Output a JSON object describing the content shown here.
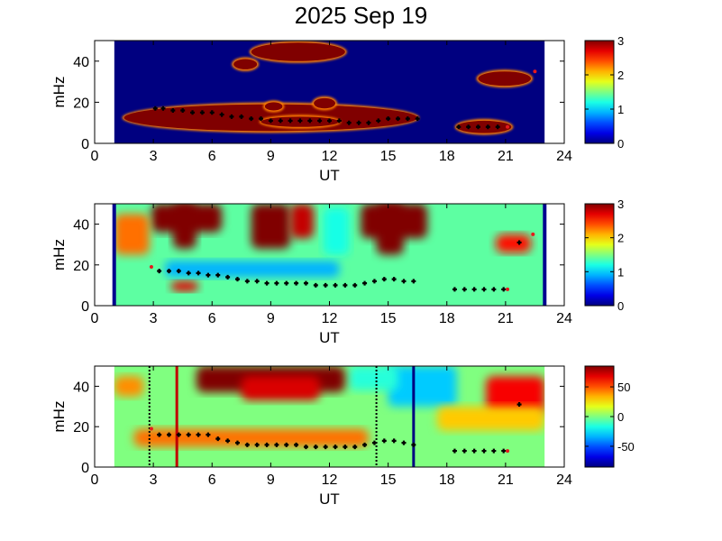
{
  "title": "2025 Sep 19",
  "chart_data": [
    {
      "type": "heatmap",
      "panel": "top",
      "xlabel": "UT",
      "ylabel": "mHz",
      "xlim": [
        0,
        24
      ],
      "ylim": [
        0,
        50
      ],
      "xticks": [
        0,
        3,
        6,
        9,
        12,
        15,
        18,
        21,
        24
      ],
      "yticks": [
        0,
        20,
        40
      ],
      "colorbar": {
        "range": [
          0,
          3
        ],
        "ticks": [
          0,
          1,
          2,
          3
        ]
      },
      "data_extent_ut": [
        1.0,
        23.0
      ],
      "background_level": 0,
      "high_regions": [
        {
          "ut": [
            1.5,
            16.5
          ],
          "mhz": [
            6,
            19
          ],
          "level": 3,
          "label": "main band"
        },
        {
          "ut": [
            8.5,
            12.5
          ],
          "mhz": [
            8,
            13
          ],
          "level": 3,
          "label": "band core"
        },
        {
          "ut": [
            8.7,
            9.6
          ],
          "mhz": [
            16,
            20
          ],
          "level": 3
        },
        {
          "ut": [
            11.2,
            12.3
          ],
          "mhz": [
            17,
            22
          ],
          "level": 3
        },
        {
          "ut": [
            7.1,
            8.3
          ],
          "mhz": [
            36,
            41
          ],
          "level": 3
        },
        {
          "ut": [
            8.0,
            12.8
          ],
          "mhz": [
            40,
            49
          ],
          "level": 3
        },
        {
          "ut": [
            18.5,
            21.3
          ],
          "mhz": [
            5,
            11
          ],
          "level": 3
        },
        {
          "ut": [
            19.6,
            22.3
          ],
          "mhz": [
            28,
            35
          ],
          "level": 3
        }
      ],
      "series": [
        {
          "kind": "peak_frequency",
          "color": "#000000",
          "points": [
            [
              3.1,
              17
            ],
            [
              3.5,
              17
            ],
            [
              4.0,
              16
            ],
            [
              4.5,
              16
            ],
            [
              5.0,
              15
            ],
            [
              5.5,
              15
            ],
            [
              6.0,
              15
            ],
            [
              6.5,
              14
            ],
            [
              7.0,
              13
            ],
            [
              7.5,
              13
            ],
            [
              8.0,
              12
            ],
            [
              8.5,
              12
            ],
            [
              9.0,
              11
            ],
            [
              9.5,
              11
            ],
            [
              10.0,
              11
            ],
            [
              10.5,
              11
            ],
            [
              11.0,
              11
            ],
            [
              11.5,
              11
            ],
            [
              12.0,
              11
            ],
            [
              12.5,
              11
            ],
            [
              13.0,
              10
            ],
            [
              13.5,
              10
            ],
            [
              14.0,
              10
            ],
            [
              14.5,
              11
            ],
            [
              15.0,
              12
            ],
            [
              15.5,
              12
            ],
            [
              16.0,
              12
            ],
            [
              16.5,
              12
            ],
            [
              18.6,
              8
            ],
            [
              19.1,
              8
            ],
            [
              19.6,
              8
            ],
            [
              20.1,
              8
            ],
            [
              20.6,
              8
            ]
          ]
        },
        {
          "kind": "marker",
          "color": "#e41a1c",
          "points": [
            [
              21.1,
              8
            ],
            [
              22.5,
              35
            ]
          ]
        }
      ]
    },
    {
      "type": "heatmap",
      "panel": "middle",
      "xlabel": "UT",
      "ylabel": "mHz",
      "xlim": [
        0,
        24
      ],
      "ylim": [
        0,
        50
      ],
      "xticks": [
        0,
        3,
        6,
        9,
        12,
        15,
        18,
        21,
        24
      ],
      "yticks": [
        0,
        20,
        40
      ],
      "colorbar": {
        "range": [
          0,
          3
        ],
        "ticks": [
          0,
          1,
          2,
          3
        ]
      },
      "data_extent_ut": [
        1.0,
        23.0
      ],
      "boundary_lines_ut": [
        1.0,
        23.0
      ],
      "background_level": 1.4,
      "high_regions": [
        {
          "ut": [
            2.9,
            6.5
          ],
          "mhz": [
            36,
            50
          ],
          "level": 3
        },
        {
          "ut": [
            4.0,
            5.2
          ],
          "mhz": [
            28,
            50
          ],
          "level": 3
        },
        {
          "ut": [
            8.0,
            10.0
          ],
          "mhz": [
            28,
            50
          ],
          "level": 3
        },
        {
          "ut": [
            10.0,
            11.2
          ],
          "mhz": [
            33,
            50
          ],
          "level": 2.8
        },
        {
          "ut": [
            13.6,
            17.0
          ],
          "mhz": [
            33,
            50
          ],
          "level": 3
        },
        {
          "ut": [
            14.4,
            15.8
          ],
          "mhz": [
            25,
            50
          ],
          "level": 3
        },
        {
          "ut": [
            20.5,
            22.3
          ],
          "mhz": [
            26,
            35
          ],
          "level": 2.6
        },
        {
          "ut": [
            1.0,
            2.8
          ],
          "mhz": [
            25,
            45
          ],
          "level": 2.3
        },
        {
          "ut": [
            3.9,
            5.3
          ],
          "mhz": [
            7,
            12
          ],
          "level": 2.7
        }
      ],
      "low_regions": [
        {
          "ut": [
            3.6,
            12.5
          ],
          "mhz": [
            14,
            22
          ],
          "level": 0.9
        },
        {
          "ut": [
            11.7,
            13.0
          ],
          "mhz": [
            25,
            48
          ],
          "level": 1.2
        }
      ],
      "series": [
        {
          "kind": "peak_frequency",
          "color": "#000000",
          "points": [
            [
              3.3,
              17
            ],
            [
              3.8,
              17
            ],
            [
              4.3,
              17
            ],
            [
              4.8,
              16
            ],
            [
              5.3,
              16
            ],
            [
              5.8,
              15
            ],
            [
              6.3,
              15
            ],
            [
              6.8,
              14
            ],
            [
              7.3,
              13
            ],
            [
              7.8,
              12
            ],
            [
              8.3,
              12
            ],
            [
              8.8,
              11
            ],
            [
              9.3,
              11
            ],
            [
              9.8,
              11
            ],
            [
              10.3,
              11
            ],
            [
              10.8,
              11
            ],
            [
              11.3,
              10
            ],
            [
              11.8,
              10
            ],
            [
              12.3,
              10
            ],
            [
              12.8,
              10
            ],
            [
              13.3,
              10
            ],
            [
              13.8,
              11
            ],
            [
              14.3,
              12
            ],
            [
              14.8,
              13
            ],
            [
              15.3,
              13
            ],
            [
              15.8,
              12
            ],
            [
              16.3,
              12
            ],
            [
              18.4,
              8
            ],
            [
              18.9,
              8
            ],
            [
              19.4,
              8
            ],
            [
              19.9,
              8
            ],
            [
              20.4,
              8
            ],
            [
              20.9,
              8
            ],
            [
              21.7,
              31
            ]
          ]
        },
        {
          "kind": "marker",
          "color": "#e41a1c",
          "points": [
            [
              2.9,
              19
            ],
            [
              21.1,
              8
            ],
            [
              22.4,
              35
            ]
          ]
        }
      ]
    },
    {
      "type": "heatmap",
      "panel": "bottom",
      "xlabel": "UT",
      "ylabel": "mHz",
      "xlim": [
        0,
        24
      ],
      "ylim": [
        0,
        50
      ],
      "xticks": [
        0,
        3,
        6,
        9,
        12,
        15,
        18,
        21,
        24
      ],
      "yticks": [
        0,
        20,
        40
      ],
      "colorbar": {
        "range": [
          -85,
          85
        ],
        "ticks": [
          -50,
          0,
          50
        ]
      },
      "data_extent_ut": [
        1.0,
        23.0
      ],
      "background_level": 0,
      "vertical_lines": [
        {
          "ut": 2.8,
          "style": "dotted",
          "color": "#000000"
        },
        {
          "ut": 4.2,
          "style": "solid",
          "color": "#c00000"
        },
        {
          "ut": 14.4,
          "style": "dotted",
          "color": "#000000"
        },
        {
          "ut": 16.3,
          "style": "solid",
          "color": "#000080"
        }
      ],
      "high_regions": [
        {
          "ut": [
            5.2,
            12.8
          ],
          "mhz": [
            37,
            50
          ],
          "level": 85
        },
        {
          "ut": [
            7.5,
            11.5
          ],
          "mhz": [
            33,
            45
          ],
          "level": 70
        },
        {
          "ut": [
            1.0,
            2.5
          ],
          "mhz": [
            35,
            45
          ],
          "level": 40
        },
        {
          "ut": [
            2.0,
            14.0
          ],
          "mhz": [
            10,
            19
          ],
          "level": 45
        },
        {
          "ut": [
            20.0,
            23.0
          ],
          "mhz": [
            26,
            45
          ],
          "level": 65
        },
        {
          "ut": [
            17.5,
            23.0
          ],
          "mhz": [
            18,
            30
          ],
          "level": 30
        }
      ],
      "low_regions": [
        {
          "ut": [
            15.0,
            18.5
          ],
          "mhz": [
            30,
            50
          ],
          "level": -30
        },
        {
          "ut": [
            13.0,
            15.5
          ],
          "mhz": [
            38,
            50
          ],
          "level": -15
        }
      ],
      "series": [
        {
          "kind": "peak_frequency",
          "color": "#000000",
          "points": [
            [
              3.3,
              16
            ],
            [
              3.8,
              16
            ],
            [
              4.3,
              16
            ],
            [
              4.8,
              16
            ],
            [
              5.3,
              16
            ],
            [
              5.8,
              16
            ],
            [
              6.3,
              14
            ],
            [
              6.8,
              13
            ],
            [
              7.3,
              12
            ],
            [
              7.8,
              11
            ],
            [
              8.3,
              11
            ],
            [
              8.8,
              11
            ],
            [
              9.3,
              11
            ],
            [
              9.8,
              11
            ],
            [
              10.3,
              11
            ],
            [
              10.8,
              10
            ],
            [
              11.3,
              10
            ],
            [
              11.8,
              10
            ],
            [
              12.3,
              10
            ],
            [
              12.8,
              10
            ],
            [
              13.3,
              10
            ],
            [
              13.8,
              11
            ],
            [
              14.3,
              12
            ],
            [
              14.8,
              13
            ],
            [
              15.3,
              13
            ],
            [
              15.8,
              12
            ],
            [
              16.3,
              11
            ],
            [
              18.4,
              8
            ],
            [
              18.9,
              8
            ],
            [
              19.4,
              8
            ],
            [
              19.9,
              8
            ],
            [
              20.4,
              8
            ],
            [
              20.9,
              8
            ],
            [
              21.7,
              31
            ]
          ]
        },
        {
          "kind": "marker",
          "color": "#e41a1c",
          "points": [
            [
              2.9,
              19
            ],
            [
              21.1,
              8
            ]
          ]
        }
      ]
    }
  ]
}
